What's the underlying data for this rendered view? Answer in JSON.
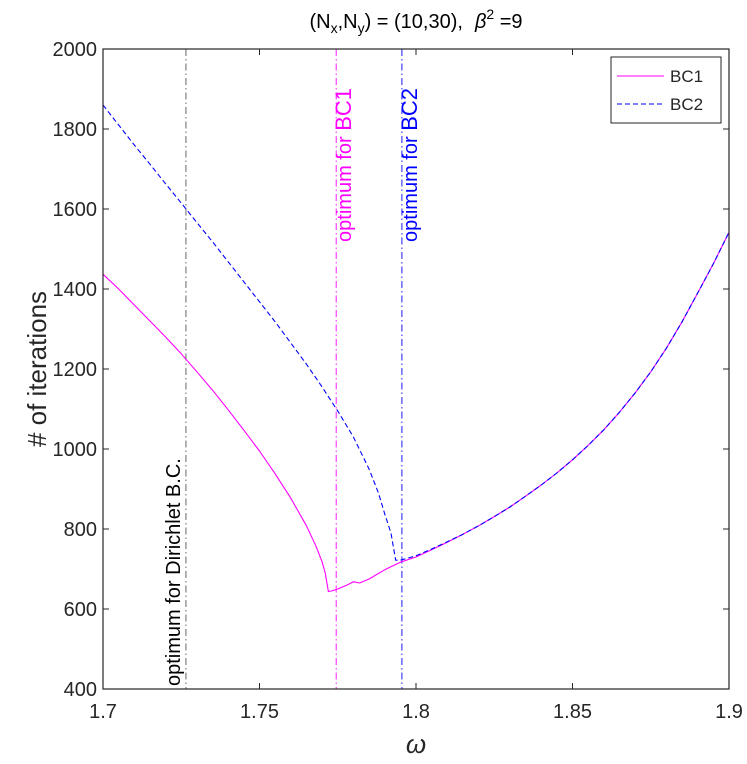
{
  "chart_data": {
    "type": "line",
    "title": {
      "prefix_N": "(N",
      "sub_x": "x",
      "comma_N": ",N",
      "sub_y": "y",
      "middle": ") = (10,30),",
      "beta": "β",
      "sup": "2",
      "suffix": " =9"
    },
    "xlabel": "ω",
    "ylabel": "# of iterations",
    "xlim": [
      1.7,
      1.9
    ],
    "ylim": [
      400,
      2000
    ],
    "xticks": [
      1.7,
      1.75,
      1.8,
      1.85,
      1.9
    ],
    "xtick_labels": [
      "1.7",
      "1.75",
      "1.8",
      "1.85",
      "1.9"
    ],
    "yticks": [
      400,
      600,
      800,
      1000,
      1200,
      1400,
      1600,
      1800,
      2000
    ],
    "ytick_labels": [
      "400",
      "600",
      "800",
      "1000",
      "1200",
      "1400",
      "1600",
      "1800",
      "2000"
    ],
    "grid": false,
    "legend_position": "top-right",
    "series": [
      {
        "name": "BC1",
        "color": "#ff00ff",
        "dash": "solid",
        "x": [
          1.7,
          1.705,
          1.71,
          1.715,
          1.72,
          1.725,
          1.73,
          1.735,
          1.74,
          1.745,
          1.75,
          1.755,
          1.76,
          1.765,
          1.768,
          1.77,
          1.771,
          1.772,
          1.773,
          1.775,
          1.778,
          1.78,
          1.782,
          1.785,
          1.79,
          1.795,
          1.8,
          1.805,
          1.81,
          1.815,
          1.82,
          1.825,
          1.83,
          1.835,
          1.84,
          1.845,
          1.85,
          1.855,
          1.86,
          1.865,
          1.87,
          1.875,
          1.88,
          1.885,
          1.89,
          1.895,
          1.9
        ],
        "y": [
          1437,
          1400,
          1360,
          1320,
          1280,
          1238,
          1193,
          1147,
          1098,
          1047,
          995,
          938,
          877,
          808,
          758,
          718,
          690,
          644,
          645,
          650,
          660,
          668,
          665,
          675,
          698,
          717,
          730,
          748,
          767,
          787,
          808,
          831,
          855,
          882,
          910,
          940,
          973,
          1009,
          1048,
          1092,
          1140,
          1193,
          1252,
          1318,
          1390,
          1463,
          1542
        ]
      },
      {
        "name": "BC2",
        "color": "#0000ff",
        "dash": "dashed",
        "x": [
          1.7,
          1.705,
          1.71,
          1.715,
          1.72,
          1.725,
          1.73,
          1.735,
          1.74,
          1.745,
          1.75,
          1.755,
          1.76,
          1.765,
          1.77,
          1.775,
          1.78,
          1.785,
          1.788,
          1.79,
          1.792,
          1.7935,
          1.795,
          1.8,
          1.805,
          1.81,
          1.815,
          1.82,
          1.825,
          1.83,
          1.835,
          1.84,
          1.845,
          1.85,
          1.855,
          1.86,
          1.865,
          1.87,
          1.875,
          1.88,
          1.885,
          1.89,
          1.895,
          1.9
        ],
        "y": [
          1860,
          1810,
          1760,
          1712,
          1663,
          1615,
          1566,
          1518,
          1468,
          1418,
          1368,
          1318,
          1265,
          1212,
          1155,
          1095,
          1030,
          950,
          890,
          838,
          790,
          722,
          722,
          733,
          750,
          768,
          787,
          808,
          831,
          855,
          882,
          910,
          940,
          973,
          1009,
          1048,
          1092,
          1140,
          1193,
          1252,
          1318,
          1390,
          1463,
          1542
        ]
      }
    ],
    "vertical_lines": [
      {
        "x": 1.7265,
        "color": "#555555",
        "label": "optimum for Dirichlet B.C.",
        "label_color": "#000000"
      },
      {
        "x": 1.7745,
        "color": "#ff00ff",
        "label_prefix": "optimum for ",
        "label_highlight": "BC1",
        "label_color": "#ff00ff"
      },
      {
        "x": 1.7955,
        "color": "#0000ff",
        "label_prefix": "optimum for ",
        "label_highlight": "BC2",
        "label_color": "#0000ff"
      }
    ]
  }
}
